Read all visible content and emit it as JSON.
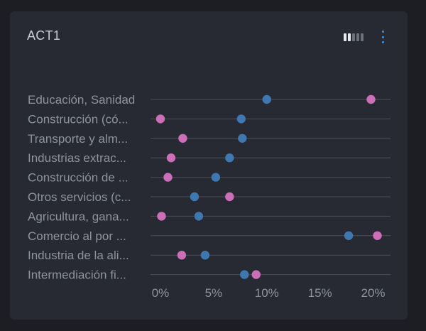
{
  "card": {
    "title": "ACT1",
    "view_toggle_icon": "view-toggle-icon",
    "menu_icon": "kebab-menu-icon"
  },
  "colors": {
    "series_a": "#3f77b0",
    "series_b": "#cc6fb8",
    "text": "#8f939c",
    "line": "#4a4e58"
  },
  "chart_data": {
    "type": "dot",
    "categories": [
      "Educación, Sanidad",
      "Construcción (có...",
      "Transporte y alm...",
      "Industrias extrac...",
      "Construcción de ...",
      "Otros servicios (c...",
      "Agricultura, gana...",
      "Comercio al por ...",
      "Industria de la ali...",
      "Intermediación fi..."
    ],
    "series": [
      {
        "values": [
          10.0,
          7.6,
          7.7,
          6.5,
          5.2,
          3.2,
          3.6,
          17.7,
          4.2,
          7.9
        ]
      },
      {
        "values": [
          19.8,
          0.0,
          2.1,
          1.0,
          0.7,
          6.5,
          0.1,
          20.4,
          2.0,
          9.0
        ]
      }
    ],
    "xlim": [
      0,
      20.7
    ],
    "xticks": [
      "0%",
      "5%",
      "10%",
      "15%",
      "20%"
    ],
    "xtick_values": [
      0,
      5,
      10,
      15,
      20
    ],
    "xlabel": "",
    "ylabel": "",
    "legend": "none"
  }
}
